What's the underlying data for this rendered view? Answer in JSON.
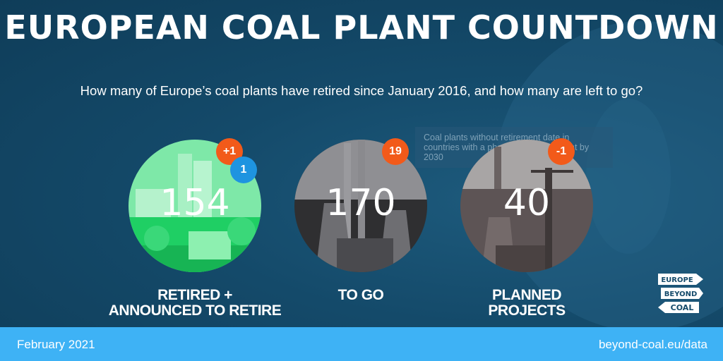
{
  "header": {
    "title": "EUROPEAN COAL PLANT COUNTDOWN",
    "subtitle": "How many of Europe’s coal plants have retired since January 2016, and how many are left to go?"
  },
  "tooltip": {
    "text": "Coal plants without retirement date in countries with a phase-out commitment by 2030"
  },
  "stats": [
    {
      "value": "154",
      "label_line1": "RETIRED +",
      "label_line2": "ANNOUNCED TO RETIRE",
      "badges": [
        {
          "text": "+1",
          "color": "#f25a1a"
        },
        {
          "text": "1",
          "color": "#1e94e0"
        }
      ]
    },
    {
      "value": "170",
      "label_line1": "TO GO",
      "label_line2": "",
      "badges": [
        {
          "text": "19",
          "color": "#f25a1a"
        }
      ]
    },
    {
      "value": "40",
      "label_line1": "PLANNED",
      "label_line2": "PROJECTS",
      "badges": [
        {
          "text": "-1",
          "color": "#f25a1a"
        }
      ]
    }
  ],
  "logo": {
    "line1": "EUROPE",
    "line2": "BEYOND",
    "line3": "COAL"
  },
  "footer": {
    "date": "February 2021",
    "url": "beyond-coal.eu/data"
  },
  "colors": {
    "background": "#144a6a",
    "footer": "#3eb2f5",
    "badge_orange": "#f25a1a",
    "badge_blue": "#1e94e0"
  }
}
